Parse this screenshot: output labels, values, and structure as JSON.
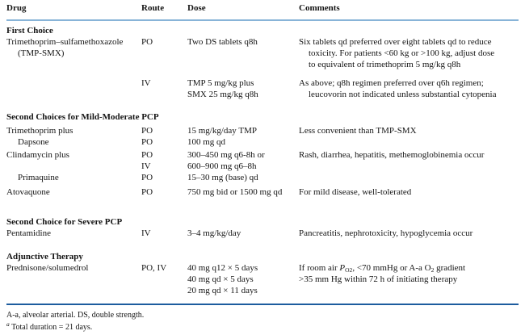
{
  "header": {
    "drug": "Drug",
    "route": "Route",
    "dose": "Dose",
    "comments": "Comments"
  },
  "sections": {
    "first_choice": {
      "title": "First Choice"
    },
    "second_mild": {
      "title": "Second Choices for Mild-Moderate PCP"
    },
    "second_severe": {
      "title": "Second Choice for Severe PCP"
    },
    "adjunctive": {
      "title": "Adjunctive Therapy"
    }
  },
  "rows": {
    "tmp_smx_po": {
      "drug_lines": [
        "Trimethoprim–sulfamethoxazole",
        "(TMP-SMX)"
      ],
      "route": "PO",
      "dose_lines": [
        "Two DS tablets q8h"
      ],
      "comment_lines": [
        "Six tablets qd preferred over eight tablets qd to reduce",
        "toxicity. For patients <60 kg or >100 kg, adjust dose",
        "to equivalent of trimethoprim 5 mg/kg q8h"
      ]
    },
    "tmp_smx_iv": {
      "route": "IV",
      "dose_lines": [
        "TMP 5 mg/kg plus",
        "SMX 25 mg/kg q8h"
      ],
      "comment_lines": [
        "As above; q8h regimen preferred over q6h regimen;",
        "leucovorin not indicated unless substantial cytopenia"
      ]
    },
    "trimethoprim": {
      "drug": "Trimethoprim plus",
      "route": "PO",
      "dose": "15 mg/kg/day TMP",
      "comment": "Less convenient than TMP-SMX"
    },
    "dapsone": {
      "drug": "Dapsone",
      "route": "PO",
      "dose": "100 mg qd"
    },
    "clindamycin": {
      "drug": "Clindamycin plus",
      "route_lines": [
        "PO",
        "IV"
      ],
      "dose_lines": [
        "300–450 mg q6-8h or",
        "600–900 mg q6–8h"
      ],
      "comment": "Rash, diarrhea, hepatitis, methemoglobinemia occur"
    },
    "primaquine": {
      "drug": "Primaquine",
      "route": "PO",
      "dose": "15–30 mg (base) qd"
    },
    "atovaquone": {
      "drug": "Atovaquone",
      "route": "PO",
      "dose": "750 mg bid or 1500 mg qd",
      "comment": "For mild disease, well-tolerated"
    },
    "pentamidine": {
      "drug": "Pentamidine",
      "route": "IV",
      "dose": "3–4 mg/kg/day",
      "comment": "Pancreatitis, nephrotoxicity, hypoglycemia occur"
    },
    "prednisone": {
      "drug": "Prednisone/solumedrol",
      "route": "PO, IV",
      "dose_lines": [
        "40 mg q12 × 5 days",
        "40 mg qd × 5 days",
        "20 mg qd × 11 days"
      ],
      "comment_rich": {
        "t1": "If room air ",
        "p_italic": "P",
        "p_sub": "O2",
        "t2": ", <70 mmHg or A-a O",
        "o_sub": "2",
        "t3": " gradient"
      },
      "comment_line2": ">35 mm Hg within 72 h of initiating therapy"
    }
  },
  "footnotes": {
    "line1": "A-a, alveolar arterial. DS, double strength.",
    "note_a_marker": "a",
    "note_a_text": " Total duration = 21 days."
  },
  "colors": {
    "rule_light": "#88b4d8",
    "rule_dark": "#1d5c9e",
    "text_color": "#141414",
    "background": "#ffffff"
  }
}
